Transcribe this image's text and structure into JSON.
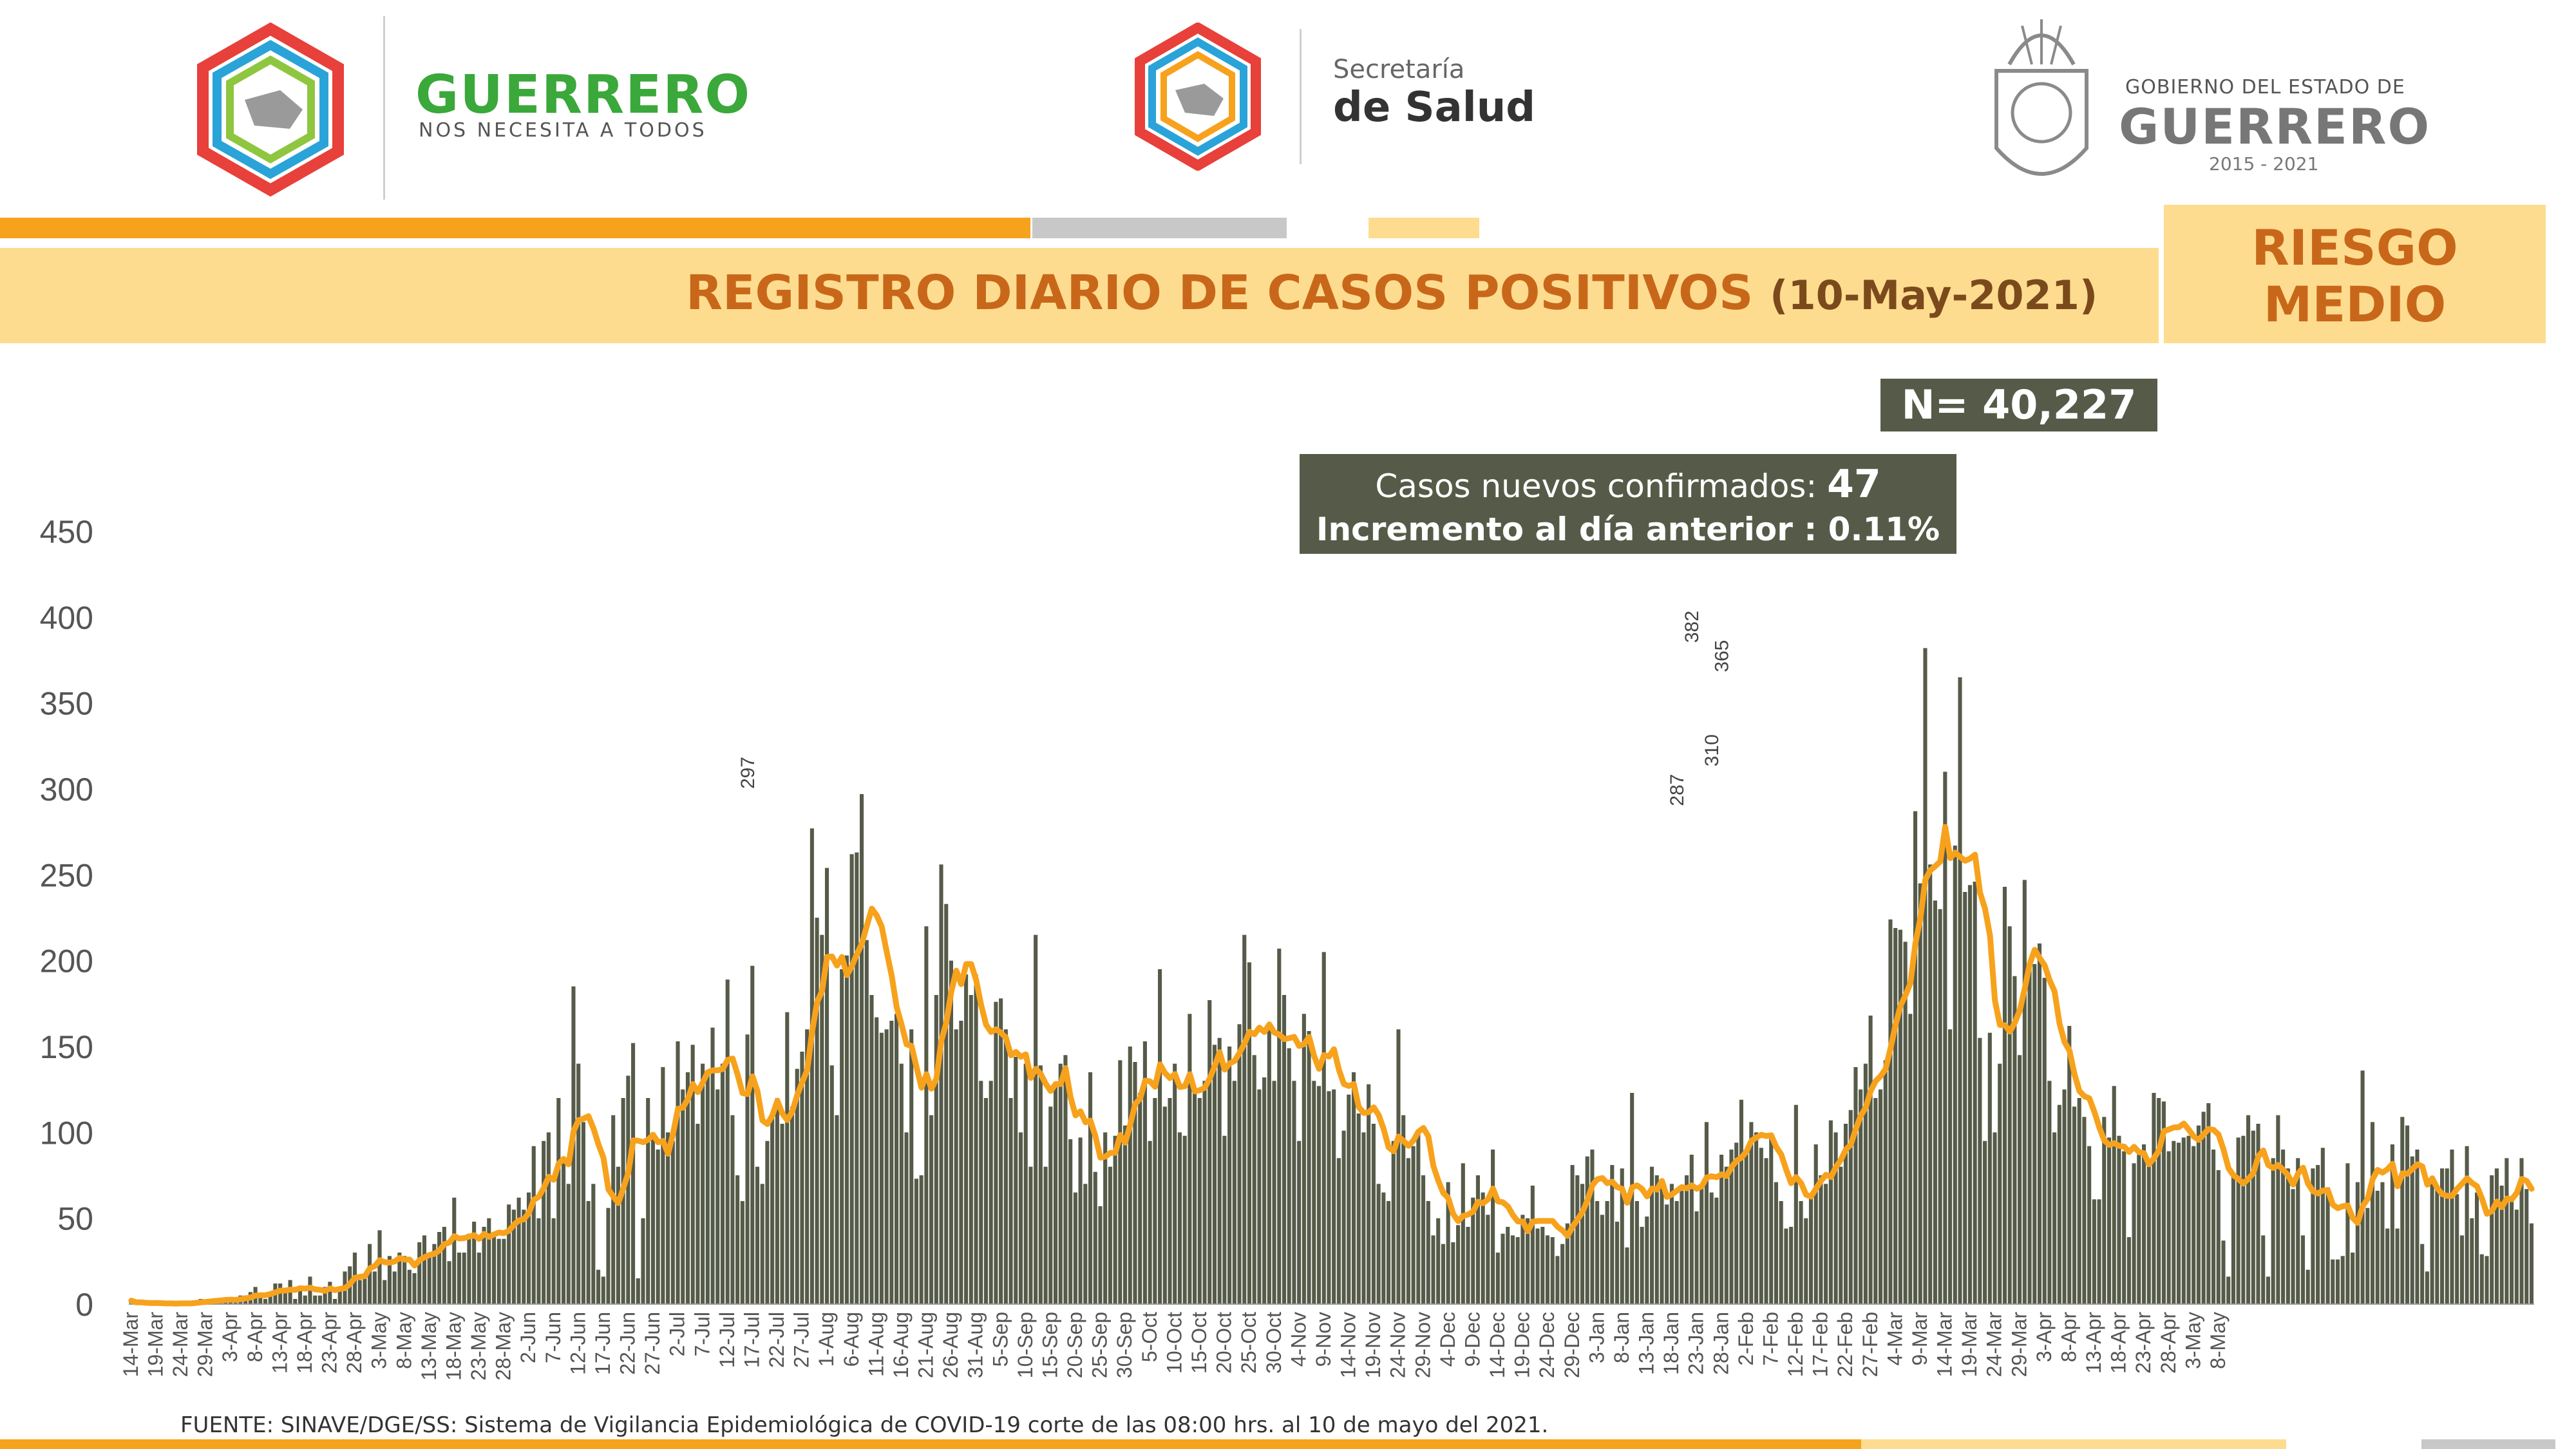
{
  "header": {
    "left_logo_name": "GUERRERO",
    "left_logo_slogan": "NOS NECESITA A TODOS",
    "center_logo_line1": "Secretaría",
    "center_logo_line2": "de Salud",
    "right_logo_line1": "GOBIERNO DEL ESTADO DE",
    "right_logo_line2": "GUERRERO",
    "right_logo_years": "2015 - 2021"
  },
  "banner": {
    "title": "REGISTRO DIARIO DE CASOS POSITIVOS",
    "date": "(10-May-2021)",
    "risk_line1": "RIESGO",
    "risk_line2": "MEDIO"
  },
  "summary": {
    "total": "N= 40,227",
    "new_label": "Casos nuevos confirmados: ",
    "new_value": "47",
    "inc_label": "Incremento al día anterior : ",
    "inc_value": "0.11%"
  },
  "source": "FUENTE: SINAVE/DGE/SS: Sistema de Vigilancia Epidemiológica de COVID-19 corte de las 08:00 hrs. al 10 de mayo del 2021.",
  "colors": {
    "bar": "#555b48",
    "trend": "#f7a21c",
    "title": "#c8671a",
    "band": "#fedc8f",
    "orange": "#f7a21c",
    "gray": "#c8c8c8"
  },
  "chart_data": {
    "type": "bar",
    "title": "",
    "xlabel": "",
    "ylabel": "",
    "ylim": [
      0,
      450
    ],
    "yticks": [
      0,
      50,
      100,
      150,
      200,
      250,
      300,
      350,
      400,
      450
    ],
    "start_date": "2020-03-14",
    "x_tick_labels": [
      "14-Mar",
      "19-Mar",
      "24-Mar",
      "29-Mar",
      "3-Apr",
      "8-Apr",
      "13-Apr",
      "18-Apr",
      "23-Apr",
      "28-Apr",
      "3-May",
      "8-May",
      "13-May",
      "18-May",
      "23-May",
      "28-May",
      "2-Jun",
      "7-Jun",
      "12-Jun",
      "17-Jun",
      "22-Jun",
      "27-Jun",
      "2-Jul",
      "7-Jul",
      "12-Jul",
      "17-Jul",
      "22-Jul",
      "27-Jul",
      "1-Aug",
      "6-Aug",
      "11-Aug",
      "16-Aug",
      "21-Aug",
      "26-Aug",
      "31-Aug",
      "5-Sep",
      "10-Sep",
      "15-Sep",
      "20-Sep",
      "25-Sep",
      "30-Sep",
      "5-Oct",
      "10-Oct",
      "15-Oct",
      "20-Oct",
      "25-Oct",
      "30-Oct",
      "4-Nov",
      "9-Nov",
      "14-Nov",
      "19-Nov",
      "24-Nov",
      "29-Nov",
      "4-Dec",
      "9-Dec",
      "14-Dec",
      "19-Dec",
      "24-Dec",
      "29-Dec",
      "3-Jan",
      "8-Jan",
      "13-Jan",
      "18-Jan",
      "23-Jan",
      "28-Jan",
      "2-Feb",
      "7-Feb",
      "12-Feb",
      "17-Feb",
      "22-Feb",
      "27-Feb",
      "4-Mar",
      "9-Mar",
      "14-Mar",
      "19-Mar",
      "24-Mar",
      "29-Mar",
      "3-Apr",
      "8-Apr",
      "13-Apr",
      "18-Apr",
      "23-Apr",
      "28-Apr",
      "3-May",
      "8-May"
    ],
    "tick_every_days": 5,
    "trend_window_days": 7,
    "series": [
      {
        "type": "bar",
        "values": [
          2,
          0,
          1,
          0,
          0,
          1,
          0,
          1,
          0,
          0,
          1,
          0,
          1,
          2,
          3,
          2,
          2,
          3,
          2,
          3,
          3,
          2,
          5,
          5,
          7,
          10,
          4,
          3,
          7,
          12,
          12,
          7,
          14,
          3,
          10,
          5,
          16,
          5,
          5,
          10,
          13,
          3,
          10,
          19,
          22,
          30,
          14,
          16,
          35,
          19,
          43,
          14,
          28,
          19,
          30,
          28,
          20,
          18,
          36,
          40,
          28,
          35,
          42,
          45,
          25,
          62,
          30,
          30,
          41,
          48,
          30,
          45,
          50,
          40,
          38,
          38,
          58,
          55,
          62,
          55,
          65,
          92,
          50,
          95,
          100,
          50,
          120,
          85,
          70,
          185,
          140,
          106,
          60,
          70,
          20,
          16,
          56,
          110,
          80,
          120,
          133,
          152,
          15,
          50,
          120,
          100,
          90,
          138,
          100,
          95,
          153,
          125,
          135,
          151,
          105,
          140,
          136,
          161,
          125,
          140,
          189,
          110,
          75,
          60,
          157,
          197,
          80,
          70,
          95,
          110,
          120,
          105,
          170,
          115,
          137,
          147,
          160,
          277,
          225,
          215,
          254,
          139,
          110,
          195,
          203,
          262,
          263,
          297,
          212,
          180,
          167,
          158,
          160,
          165,
          169,
          140,
          100,
          160,
          73,
          75,
          220,
          110,
          180,
          256,
          233,
          200,
          160,
          165,
          192,
          180,
          192,
          130,
          120,
          130,
          176,
          178,
          160,
          120,
          144,
          100,
          140,
          80,
          215,
          139,
          80,
          115,
          128,
          140,
          145,
          96,
          65,
          97,
          70,
          135,
          77,
          57,
          100,
          80,
          98,
          142,
          104,
          150,
          141,
          123,
          153,
          95,
          120,
          195,
          115,
          120,
          140,
          100,
          98,
          169,
          125,
          120,
          130,
          177,
          151,
          155,
          98,
          150,
          130,
          163,
          215,
          199,
          145,
          125,
          132,
          161,
          130,
          207,
          180,
          149,
          130,
          95,
          169,
          159,
          130,
          127,
          205,
          124,
          125,
          85,
          101,
          122,
          135,
          111,
          100,
          128,
          105,
          70,
          65,
          60,
          95,
          160,
          110,
          85,
          92,
          101,
          75,
          60,
          40,
          50,
          35,
          71,
          36,
          46,
          82,
          45,
          62,
          75,
          65,
          52,
          90,
          30,
          41,
          45,
          40,
          39,
          52,
          50,
          69,
          44,
          45,
          40,
          39,
          28,
          35,
          47,
          81,
          75,
          70,
          86,
          90,
          60,
          52,
          60,
          81,
          48,
          79,
          33,
          123,
          60,
          45,
          51,
          80,
          75,
          68,
          58,
          70,
          60,
          66,
          75,
          87,
          54,
          68,
          106,
          65,
          62,
          87,
          80,
          90,
          94,
          119,
          90,
          106,
          100,
          91,
          85,
          97,
          71,
          60,
          44,
          45,
          116,
          60,
          50,
          63,
          93,
          75,
          70,
          107,
          100,
          80,
          105,
          113,
          138,
          125,
          140,
          168,
          120,
          125,
          142,
          224,
          219,
          218,
          211,
          169,
          287,
          245,
          382,
          256,
          235,
          230,
          310,
          160,
          267,
          365,
          240,
          244,
          246,
          155,
          95,
          158,
          100,
          140,
          243,
          220,
          191,
          145,
          247,
          200,
          198,
          210,
          190,
          130,
          100,
          116,
          125,
          162,
          115,
          120,
          109,
          92,
          61,
          61,
          109,
          97,
          127,
          98,
          89,
          39,
          82,
          87,
          93,
          82,
          123,
          120,
          118,
          89,
          95,
          94,
          97,
          98,
          92,
          104,
          112,
          117,
          90,
          78,
          37,
          16,
          75,
          97,
          98,
          110,
          101,
          105,
          40,
          16,
          85,
          110,
          90,
          79,
          67,
          85,
          40,
          20,
          79,
          81,
          91,
          68,
          26,
          26,
          28,
          82,
          30,
          71,
          136,
          56,
          106,
          66,
          71,
          44,
          93,
          44,
          109,
          104,
          86,
          90,
          35,
          19,
          70,
          69,
          79,
          79,
          90,
          64,
          40,
          92,
          50,
          65,
          29,
          28,
          75,
          79,
          69,
          85,
          62,
          55,
          85,
          67,
          47
        ]
      }
    ],
    "labeled_peaks": [
      {
        "date": "2020-07-16",
        "value": 297
      },
      {
        "date": "2021-01-22",
        "value": 382
      },
      {
        "date": "2021-01-28",
        "value": 365
      },
      {
        "date": "2021-01-19",
        "value": 287
      },
      {
        "date": "2021-01-26",
        "value": 310
      }
    ]
  }
}
